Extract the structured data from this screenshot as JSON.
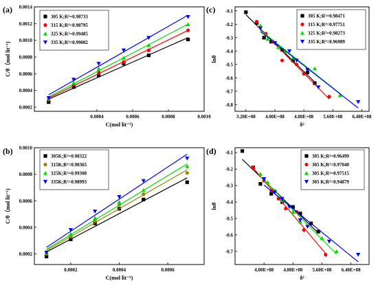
{
  "chart_data": [
    {
      "type": "scatter",
      "panel_label": "(a)",
      "xlabel": "C(mol lit⁻¹)",
      "ylabel": "C/θ（mol lit⁻¹)",
      "x_ticks": [
        "0.0004",
        "0.0006",
        "0.0008",
        "0.0010"
      ],
      "x_tick_values": [
        0.0004,
        0.0006,
        0.0008,
        0.001
      ],
      "y_ticks": [
        "0.0002",
        "0.0004",
        "0.0006",
        "0.0008",
        "0.0010",
        "0.0012",
        "0.0014"
      ],
      "y_tick_values": [
        0.0002,
        0.0004,
        0.0006,
        0.0008,
        0.001,
        0.0012,
        0.0014
      ],
      "xlim": [
        5e-05,
        0.001
      ],
      "ylim": [
        0.00015,
        0.0014
      ],
      "legend_position": "top-left",
      "series": [
        {
          "name": "305 K;R²=0.98733",
          "color": "#000000",
          "marker": "square",
          "x": [
            0.00013,
            0.00027,
            0.00041,
            0.00055,
            0.00069,
            0.00091
          ],
          "y": [
            0.00026,
            0.00044,
            0.00058,
            0.00072,
            0.00082,
            0.00101
          ]
        },
        {
          "name": "315 K;R²=0.98795",
          "color": "#ff0000",
          "marker": "circle",
          "x": [
            0.00013,
            0.00027,
            0.00041,
            0.00055,
            0.00069,
            0.00091
          ],
          "y": [
            0.00029,
            0.00047,
            0.00062,
            0.00074,
            0.00088,
            0.00112
          ]
        },
        {
          "name": "325 K;R²=0.99485",
          "color": "#00dd00",
          "marker": "triangle-up",
          "x": [
            0.00013,
            0.00027,
            0.00041,
            0.00055,
            0.00069,
            0.00091
          ],
          "y": [
            0.0003,
            0.00049,
            0.00066,
            0.00079,
            0.00094,
            0.00119
          ]
        },
        {
          "name": "335 K;R²=0.99002",
          "color": "#0000ff",
          "marker": "triangle-down",
          "x": [
            0.00013,
            0.00027,
            0.00041,
            0.00055,
            0.00069,
            0.00091
          ],
          "y": [
            0.00031,
            0.00053,
            0.00072,
            0.00088,
            0.00103,
            0.00128
          ]
        }
      ]
    },
    {
      "type": "scatter",
      "panel_label": "(b)",
      "xlabel": "C(mol lit⁻¹)",
      "ylabel": "C/θ（mol lit⁻¹)",
      "x_ticks": [
        "0.0002",
        "0.0004",
        "0.0006"
      ],
      "x_tick_values": [
        0.0002,
        0.0004,
        0.0006
      ],
      "y_ticks": [
        "0.0002",
        "0.0004",
        "0.0006",
        "0.0008",
        "0.0010"
      ],
      "y_tick_values": [
        0.0002,
        0.0004,
        0.0006,
        0.0008,
        0.001
      ],
      "xlim": [
        5e-05,
        0.00075
      ],
      "ylim": [
        0.00012,
        0.001
      ],
      "legend_position": "top-left",
      "series": [
        {
          "name": "305K;R²=0.98322",
          "color": "#000000",
          "marker": "square",
          "x": [
            0.0001,
            0.0002,
            0.0003,
            0.0004,
            0.0005,
            0.00068
          ],
          "y": [
            0.00018,
            0.00031,
            0.00043,
            0.00054,
            0.00061,
            0.00074
          ]
        },
        {
          "name": "315K;R²=0.98365",
          "color": "#a08000",
          "marker": "circle",
          "x": [
            0.0001,
            0.0002,
            0.0003,
            0.0004,
            0.0005,
            0.00068
          ],
          "y": [
            0.0002,
            0.00033,
            0.00045,
            0.00057,
            0.00065,
            0.00081
          ]
        },
        {
          "name": "325K;R²=0.99308",
          "color": "#00dd00",
          "marker": "triangle-up",
          "x": [
            0.0001,
            0.0002,
            0.0003,
            0.0004,
            0.0005,
            0.00068
          ],
          "y": [
            0.00021,
            0.00035,
            0.00047,
            0.00059,
            0.00068,
            0.00086
          ]
        },
        {
          "name": "335K;R²=0.98993",
          "color": "#0000ff",
          "marker": "triangle-down",
          "x": [
            0.0001,
            0.0002,
            0.0003,
            0.0004,
            0.0005,
            0.00068
          ],
          "y": [
            0.00021,
            0.00038,
            0.00052,
            0.00063,
            0.00075,
            0.00092
          ]
        }
      ]
    },
    {
      "type": "scatter",
      "panel_label": "(c)",
      "xlabel": "δ²",
      "ylabel": "lnθ",
      "x_ticks": [
        "3.20E+08",
        "4.00E+08",
        "4.80E+08",
        "5.60E+08",
        "6.40E+08"
      ],
      "x_tick_values": [
        320000000,
        400000000,
        480000000,
        560000000,
        640000000
      ],
      "y_ticks": [
        "-0.1",
        "-0.2",
        "-0.3",
        "-0.4",
        "-0.5",
        "-0.6",
        "-0.7",
        "-0.8"
      ],
      "y_tick_values": [
        -0.1,
        -0.2,
        -0.3,
        -0.4,
        -0.5,
        -0.6,
        -0.7,
        -0.8
      ],
      "xlim": [
        290000000,
        660000000
      ],
      "ylim": [
        -0.85,
        -0.07
      ],
      "legend_position": "top-right",
      "series": [
        {
          "name": "305 K;R²=0.98471",
          "color": "#000000",
          "marker": "square",
          "x": [
            320000000,
            350000000,
            370000000,
            390000000,
            420000000,
            450000000,
            490000000,
            510000000
          ],
          "y": [
            -0.11,
            -0.19,
            -0.3,
            -0.33,
            -0.39,
            -0.47,
            -0.56,
            -0.64
          ]
        },
        {
          "name": "315 K;R²=0.97751",
          "color": "#ff0000",
          "marker": "circle",
          "x": [
            350000000,
            375000000,
            395000000,
            420000000,
            460000000,
            480000000,
            550000000
          ],
          "y": [
            -0.18,
            -0.27,
            -0.33,
            -0.47,
            -0.5,
            -0.57,
            -0.74
          ]
        },
        {
          "name": "325 K;R²=0.98273",
          "color": "#00dd00",
          "marker": "triangle-up",
          "x": [
            360000000,
            380000000,
            410000000,
            430000000,
            450000000,
            510000000,
            580000000
          ],
          "y": [
            -0.21,
            -0.31,
            -0.37,
            -0.4,
            -0.45,
            -0.53,
            -0.73
          ]
        },
        {
          "name": "335 K;R²=0.96989",
          "color": "#0000ff",
          "marker": "triangle-down",
          "x": [
            360000000,
            400000000,
            440000000,
            460000000,
            490000000,
            520000000,
            630000000
          ],
          "y": [
            -0.23,
            -0.34,
            -0.4,
            -0.47,
            -0.54,
            -0.67,
            -0.78
          ]
        }
      ]
    },
    {
      "type": "scatter",
      "panel_label": "(d)",
      "xlabel": "δ²",
      "ylabel": "lnθ",
      "x_ticks": [
        "4.00E+08",
        "4.80E+08",
        "5.60E+08",
        "6.40E+08"
      ],
      "x_tick_values": [
        400000000,
        480000000,
        560000000,
        640000000
      ],
      "y_ticks": [
        "-0.1",
        "-0.2",
        "-0.3",
        "-0.4",
        "-0.5",
        "-0.6",
        "-0.7"
      ],
      "y_tick_values": [
        -0.1,
        -0.2,
        -0.3,
        -0.4,
        -0.5,
        -0.6,
        -0.7
      ],
      "xlim": [
        320000000,
        690000000
      ],
      "ylim": [
        -0.78,
        -0.07
      ],
      "legend_position": "top-right",
      "series": [
        {
          "name": "305 K;R²=0.96499",
          "color": "#000000",
          "marker": "square",
          "x": [
            340000000,
            370000000,
            390000000,
            420000000,
            450000000,
            480000000,
            500000000,
            530000000,
            550000000
          ],
          "y": [
            -0.09,
            -0.19,
            -0.29,
            -0.35,
            -0.4,
            -0.43,
            -0.47,
            -0.53,
            -0.58
          ]
        },
        {
          "name": "305 K;R²=0.97040",
          "color": "#ff0000",
          "marker": "circle",
          "x": [
            370000000,
            400000000,
            420000000,
            440000000,
            460000000,
            490000000,
            510000000,
            570000000
          ],
          "y": [
            -0.19,
            -0.27,
            -0.33,
            -0.38,
            -0.44,
            -0.46,
            -0.57,
            -0.72
          ]
        },
        {
          "name": "305 K;R²=0.97515",
          "color": "#00dd00",
          "marker": "triangle-up",
          "x": [
            390000000,
            410000000,
            430000000,
            450000000,
            480000000,
            500000000,
            560000000,
            600000000
          ],
          "y": [
            -0.23,
            -0.28,
            -0.33,
            -0.39,
            -0.46,
            -0.52,
            -0.62,
            -0.7
          ]
        },
        {
          "name": "305 K;R²=0.94879",
          "color": "#0000ff",
          "marker": "triangle-down",
          "x": [
            400000000,
            430000000,
            450000000,
            470000000,
            500000000,
            520000000,
            580000000,
            660000000
          ],
          "y": [
            -0.26,
            -0.34,
            -0.38,
            -0.43,
            -0.51,
            -0.55,
            -0.64,
            -0.72
          ]
        }
      ]
    }
  ]
}
